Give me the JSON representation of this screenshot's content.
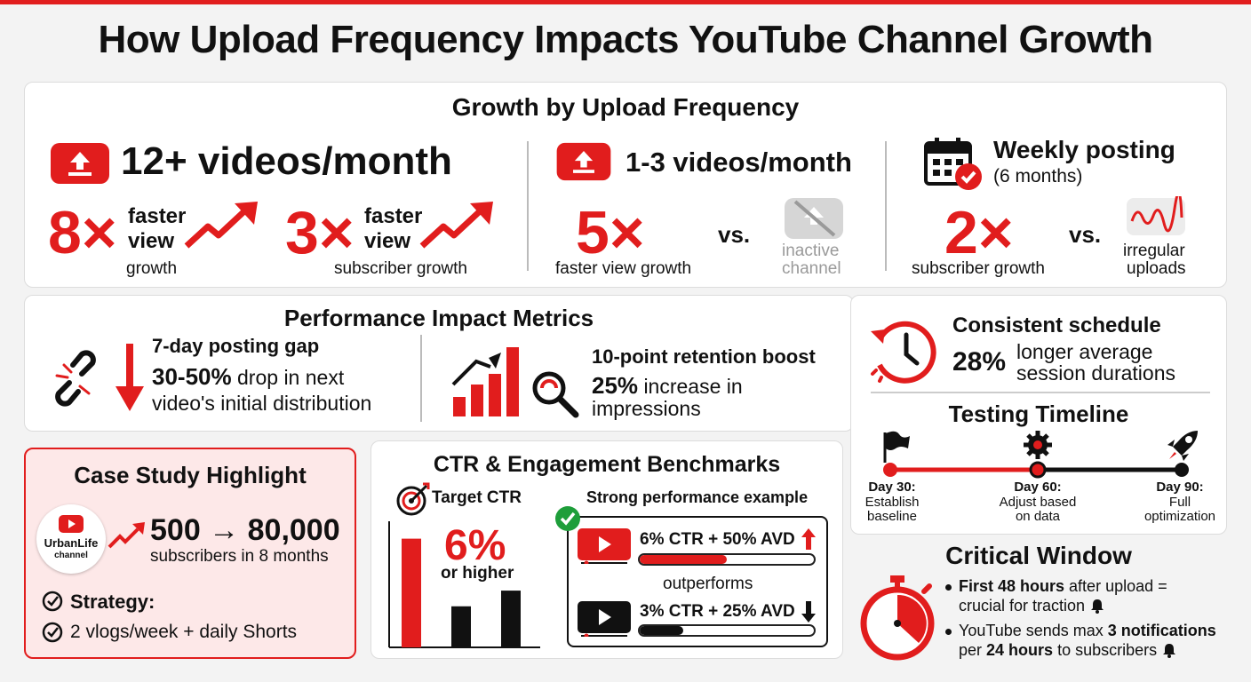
{
  "title": "How Upload Frequency Impacts YouTube Channel Growth",
  "colors": {
    "accent": "#e11d1d",
    "dark": "#111111",
    "muted": "#9a9a9a",
    "case_bg": "#fde8e8"
  },
  "growth": {
    "title": "Growth by Upload Frequency",
    "high": {
      "heading": "12+ videos/month",
      "stat1": {
        "value": "8×",
        "label_line1": "faster",
        "label_line2": "view",
        "label_line3": "growth"
      },
      "stat2": {
        "value": "3×",
        "label_line1": "faster",
        "label_line2": "view",
        "label_line3": "subscriber growth"
      }
    },
    "low": {
      "heading": "1-3 videos/month",
      "value": "5×",
      "label": "faster view growth",
      "vs": "vs.",
      "compare_line1": "inactive",
      "compare_line2": "channel"
    },
    "weekly": {
      "heading": "Weekly posting",
      "subheading": "(6 months)",
      "value": "2×",
      "label": "subscriber growth",
      "vs": "vs.",
      "compare_line1": "irregular",
      "compare_line2": "uploads"
    }
  },
  "performance": {
    "title": "Performance Impact Metrics",
    "gap": {
      "heading": "7-day posting gap",
      "value": "30-50%",
      "text": "drop in next",
      "line2": "video's initial distribution"
    },
    "retention": {
      "heading": "10-point retention boost",
      "value": "25%",
      "text": "increase in",
      "line2": "impressions"
    }
  },
  "consistent": {
    "heading": "Consistent schedule",
    "value": "28%",
    "line1": "longer average",
    "line2": "session durations"
  },
  "timeline": {
    "title": "Testing Timeline",
    "steps": [
      {
        "day": "Day 30:",
        "line1": "Establish",
        "line2": "baseline"
      },
      {
        "day": "Day 60:",
        "line1": "Adjust based",
        "line2": "on data"
      },
      {
        "day": "Day 90:",
        "line1": "Full",
        "line2": "optimization"
      }
    ]
  },
  "case_study": {
    "title": "Case Study Highlight",
    "logo_line1": "UrbanLife",
    "logo_line2": "channel",
    "growth": "500 → 80,000",
    "subtext": "subscribers in 8 months",
    "strategy_label": "Strategy:",
    "strategy": "2 vlogs/week + daily Shorts"
  },
  "ctr": {
    "title": "CTR & Engagement Benchmarks",
    "target_label": "Target CTR",
    "target_value": "6%",
    "target_sub": "or higher",
    "bars": [
      0.9,
      0.34,
      0.47
    ],
    "example_title": "Strong performance example",
    "strong": {
      "label": "6% CTR + 50% AVD",
      "progress": 0.5
    },
    "middle": "outperforms",
    "weak": {
      "label": "3% CTR + 25% AVD",
      "progress": 0.25
    }
  },
  "critical": {
    "title": "Critical Window",
    "b1_bold": "First 48 hours",
    "b1_rest": "after upload =",
    "b1_line2": "crucial for traction",
    "b2_pre": "YouTube sends max",
    "b2_bold1": "3 notifications",
    "b2_mid": "per",
    "b2_bold2": "24 hours",
    "b2_rest": "to subscribers"
  },
  "icons": [
    "upload-icon",
    "trend-up-arrow-icon",
    "inactive-video-icon",
    "calendar-check-icon",
    "wave-icon",
    "broken-link-icon",
    "down-arrow-icon",
    "rising-bars-icon",
    "magnifier-icon",
    "clock-refresh-icon",
    "flag-icon",
    "gear-icon",
    "rocket-icon",
    "youtube-logo-icon",
    "check-circle-icon",
    "target-icon",
    "play-icon",
    "up-arrow-icon",
    "bell-icon",
    "stopwatch-icon"
  ]
}
